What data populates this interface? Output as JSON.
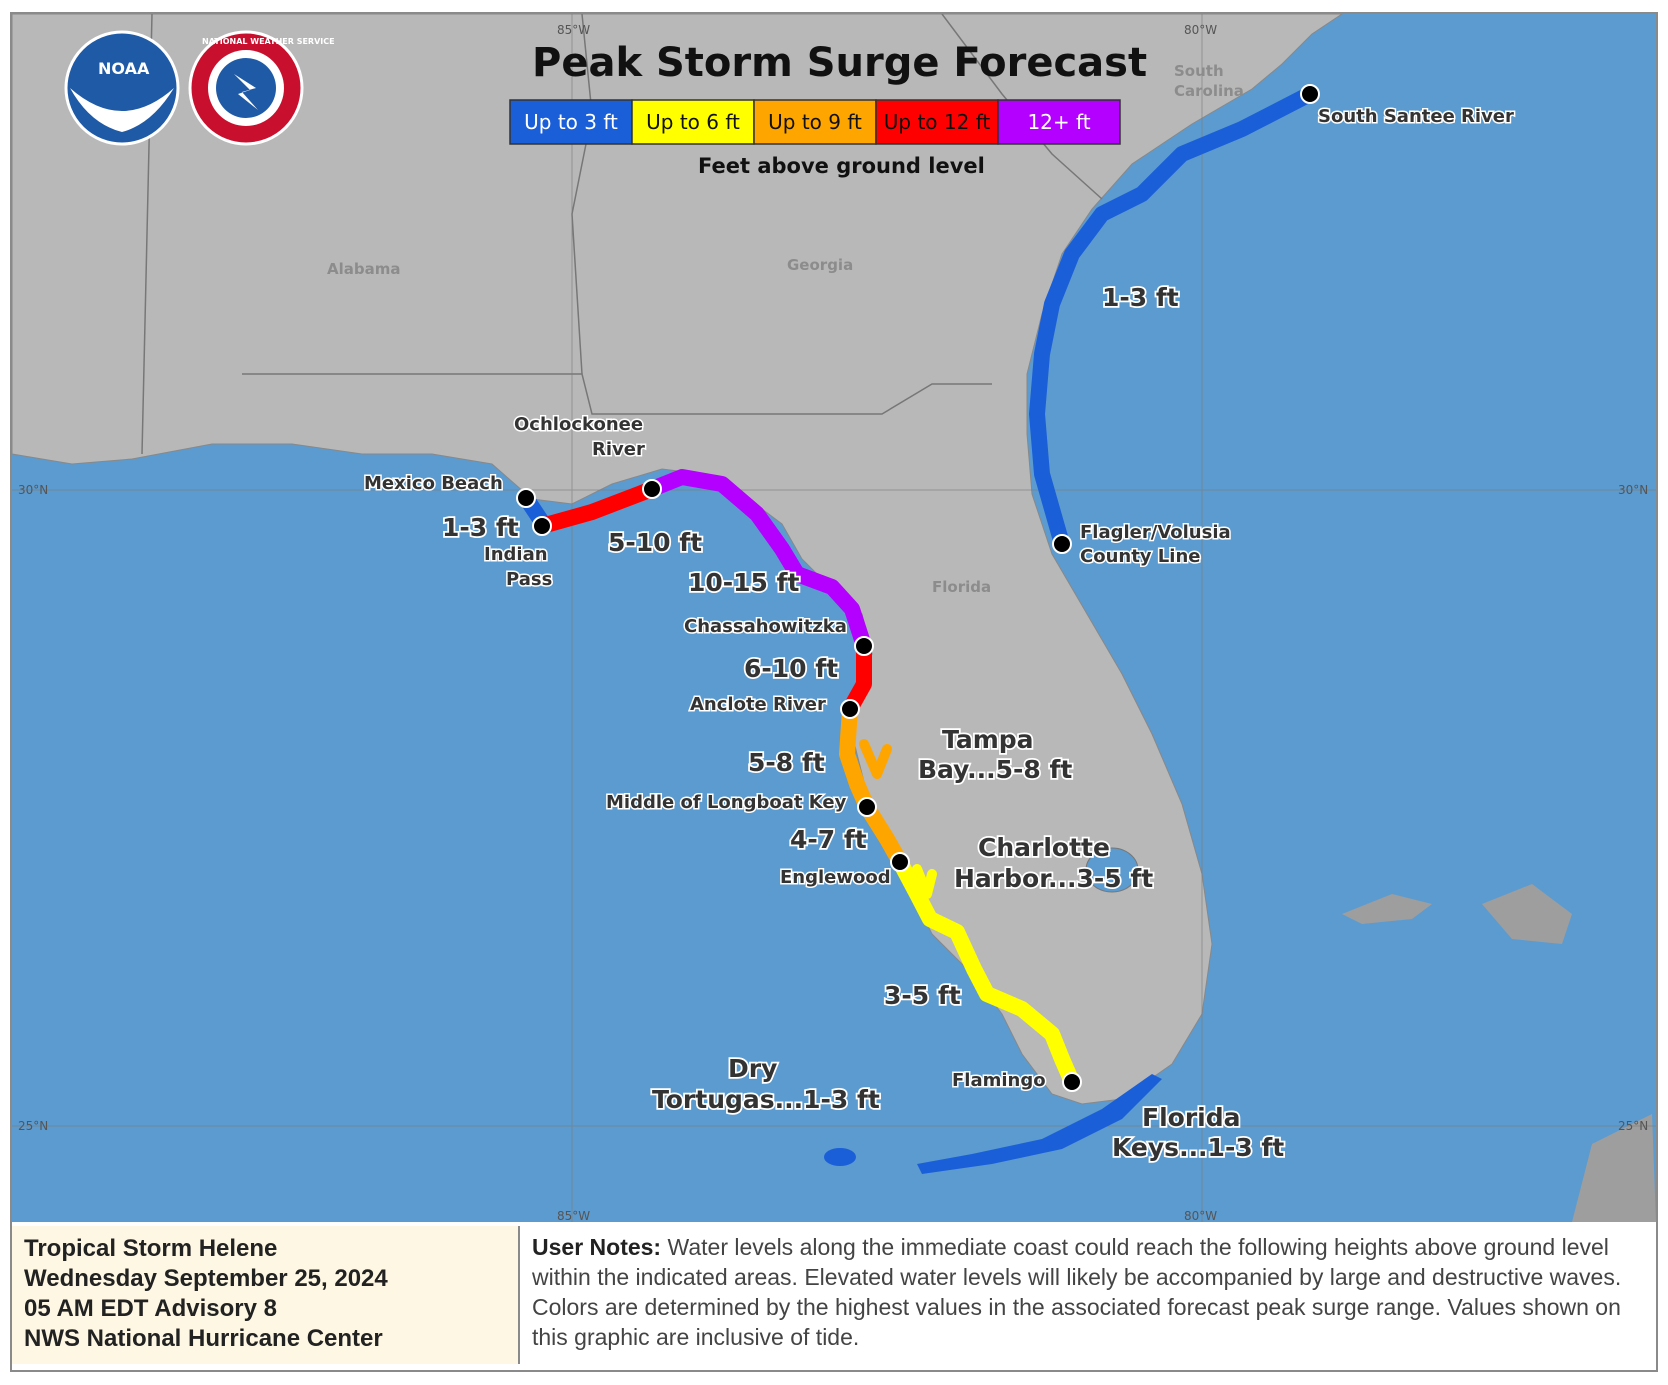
{
  "title": "Peak Storm Surge Forecast",
  "legend": {
    "items": [
      {
        "label": "Up to 3 ft",
        "color": "#1a5fd8",
        "text_color": "#ffffff"
      },
      {
        "label": "Up to 6 ft",
        "color": "#ffff00",
        "text_color": "#111111"
      },
      {
        "label": "Up to 9 ft",
        "color": "#ffa500",
        "text_color": "#111111"
      },
      {
        "label": "Up to 12 ft",
        "color": "#ff0000",
        "text_color": "#111111"
      },
      {
        "label": "12+ ft",
        "color": "#b300ff",
        "text_color": "#ffffff"
      }
    ],
    "subtitle": "Feet above ground level"
  },
  "logos": {
    "noaa": "NOAA",
    "nws": "NATIONAL WEATHER SERVICE"
  },
  "grid_labels": {
    "lon_85_top": "85°W",
    "lon_80_top": "80°W",
    "lon_85_bottom": "85°W",
    "lon_80_bottom": "80°W",
    "lat_30_left": "30°N",
    "lat_30_right": "30°N",
    "lat_25_left": "25°N",
    "lat_25_right": "25°N"
  },
  "states": {
    "alabama": "Alabama",
    "georgia": "Georgia",
    "south_carolina_1": "South",
    "south_carolina_2": "Carolina",
    "florida": "Florida"
  },
  "places": {
    "south_santee": "South Santee River",
    "flagler_1": "Flagler/Volusia",
    "flagler_2": "County Line",
    "ochlockonee_1": "Ochlockonee",
    "ochlockonee_2": "River",
    "mexico_beach": "Mexico Beach",
    "indian_pass_1": "Indian",
    "indian_pass_2": "Pass",
    "chassahowitzka": "Chassahowitzka",
    "anclote": "Anclote River",
    "longboat": "Middle of Longboat Key",
    "englewood": "Englewood",
    "flamingo": "Flamingo"
  },
  "surge_labels": {
    "atlantic": "1-3 ft",
    "mexico_indian": "1-3 ft",
    "ochlockonee_seg": "5-10 ft",
    "big_bend": "10-15 ft",
    "chass_anclote": "6-10 ft",
    "anclote_longboat": "5-8 ft",
    "longboat_englewood": "4-7 ft",
    "englewood_flamingo": "3-5 ft",
    "tampa_1": "Tampa",
    "tampa_2": "Bay...5-8 ft",
    "charlotte_1": "Charlotte",
    "charlotte_2": "Harbor...3-5 ft",
    "tortugas_1": "Dry",
    "tortugas_2": "Tortugas...1-3 ft",
    "keys_1": "Florida",
    "keys_2": "Keys...1-3 ft"
  },
  "footer": {
    "storm": "Tropical Storm Helene",
    "date": "Wednesday September 25, 2024",
    "advisory": "05 AM EDT Advisory 8",
    "center": "NWS National Hurricane Center",
    "notes_label": "User Notes:",
    "notes_text": " Water levels along the immediate coast could reach the following heights above ground level within the indicated areas. Elevated water levels will likely be accompanied by large and destructive waves. Colors are determined by the highest values in the associated forecast peak surge range. Values shown on this graphic are inclusive of tide."
  }
}
